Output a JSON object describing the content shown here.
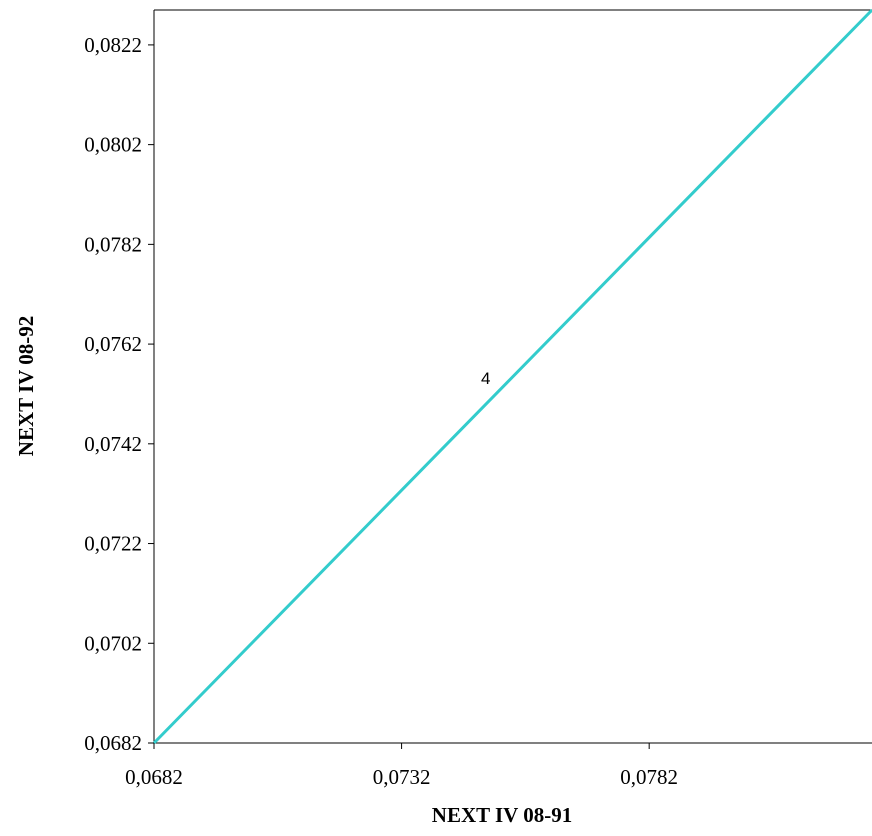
{
  "chart_data": {
    "type": "line",
    "xlabel": "NEXT IV 08-91",
    "ylabel": "NEXT IV 08-92",
    "xlim": [
      0.0682,
      0.0827
    ],
    "ylim": [
      0.0682,
      0.0829
    ],
    "x_ticks": [
      "0,0682",
      "0,0732",
      "0,0782"
    ],
    "y_ticks": [
      "0,0682",
      "0,0702",
      "0,0722",
      "0,0742",
      "0,0762",
      "0,0782",
      "0,0802",
      "0,0822"
    ],
    "x_tick_values": [
      0.0682,
      0.0732,
      0.0782
    ],
    "y_tick_values": [
      0.0682,
      0.0702,
      0.0722,
      0.0742,
      0.0762,
      0.0782,
      0.0802,
      0.0822
    ],
    "grid": false,
    "legend": "none",
    "series": [
      {
        "x": [
          0.0682,
          0.0827
        ],
        "y": [
          0.0682,
          0.0829
        ],
        "color": "#33cccc"
      }
    ],
    "annotations": [
      {
        "text": "4",
        "x": 0.0749,
        "y": 0.0754
      }
    ]
  }
}
